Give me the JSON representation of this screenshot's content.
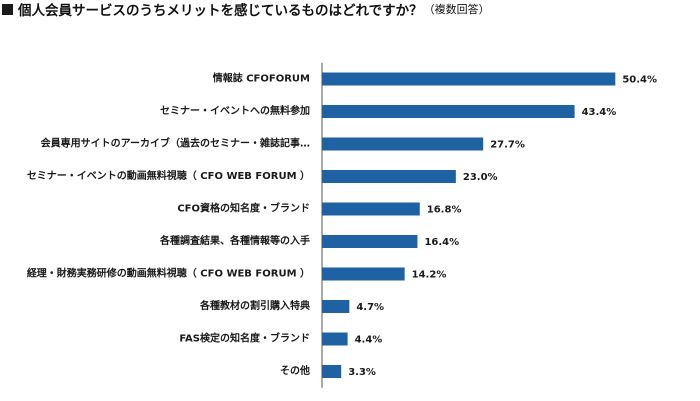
{
  "header": {
    "title": "個人会員サービスのうちメリットを感じているものはどれですか？",
    "note": "（複数回答）"
  },
  "colors": {
    "bar": "#1f62a3",
    "axis": "#555555"
  },
  "chart_data": {
    "type": "bar",
    "orientation": "horizontal",
    "title": "個人会員サービスのうちメリットを感じているものはどれですか？（複数回答）",
    "xlabel": "",
    "ylabel": "",
    "xlim": [
      0,
      55
    ],
    "grid": false,
    "value_suffix": "%",
    "categories": [
      "情報誌 CFOFORUM",
      "セミナー・イベントへの無料参加",
      "会員専用サイトのアーカイブ（過去のセミナー・雑誌記事…",
      "セミナー・イベントの動画無料視聴（ CFO WEB FORUM ）",
      "CFO資格の知名度・ブランド",
      "各種調査結果、各種情報等の入手",
      "経理・財務実務研修の動画無料視聴（ CFO WEB FORUM ）",
      "各種教材の割引購入特典",
      "FAS検定の知名度・ブランド",
      "その他"
    ],
    "values": [
      50.4,
      43.4,
      27.7,
      23.0,
      16.8,
      16.4,
      14.2,
      4.7,
      4.4,
      3.3
    ],
    "value_labels": [
      "50.4%",
      "43.4%",
      "27.7%",
      "23.0%",
      "16.8%",
      "16.4%",
      "14.2%",
      "4.7%",
      "4.4%",
      "3.3%"
    ]
  }
}
